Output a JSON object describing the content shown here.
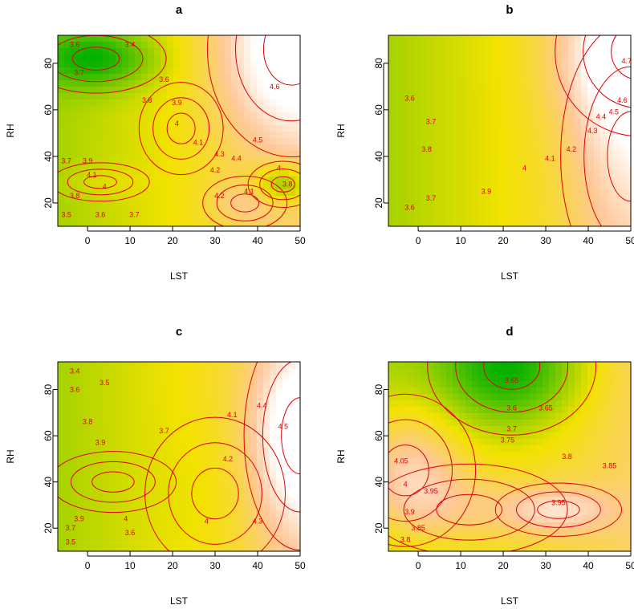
{
  "colors": {
    "contour": "#e00000",
    "low": "#00b000",
    "mid": "#f2e200",
    "high": "#ffc89a",
    "peak": "#ffffff"
  },
  "chart_data": [
    {
      "type": "heatmap",
      "title": "a",
      "xlabel": "LST",
      "ylabel": "RH",
      "xlim": [
        -7,
        50
      ],
      "ylim": [
        10,
        92
      ],
      "xticks": [
        "0",
        "10",
        "20",
        "30",
        "40",
        "50"
      ],
      "yticks": [
        "20",
        "40",
        "60",
        "80"
      ],
      "zrange": [
        3.4,
        4.7
      ],
      "peaks": [
        {
          "x": 48,
          "y": 86,
          "z": 4.7,
          "sx": 12,
          "sy": 28
        },
        {
          "x": 37,
          "y": 20,
          "z": 4.25,
          "sx": 6,
          "sy": 7
        },
        {
          "x": 3,
          "y": 29,
          "z": 4.12,
          "sx": 7,
          "sy": 5
        },
        {
          "x": 22,
          "y": 52,
          "z": 4.05,
          "sx": 6,
          "sy": 12
        },
        {
          "x": 46,
          "y": 28,
          "z": 3.55,
          "sx": 5,
          "sy": 6
        },
        {
          "x": 2,
          "y": 82,
          "z": 3.55,
          "sx": 10,
          "sy": 9
        }
      ],
      "contour_labels": [
        {
          "x": -3,
          "y": 87,
          "text": "3.6"
        },
        {
          "x": 10,
          "y": 87,
          "text": "3.4"
        },
        {
          "x": -2,
          "y": 75,
          "text": "3.7"
        },
        {
          "x": 18,
          "y": 72,
          "text": "3.6"
        },
        {
          "x": 14,
          "y": 63,
          "text": "3.8"
        },
        {
          "x": 21,
          "y": 62,
          "text": "3.9"
        },
        {
          "x": 21,
          "y": 53,
          "text": "4"
        },
        {
          "x": 26,
          "y": 45,
          "text": "4.1"
        },
        {
          "x": 44,
          "y": 69,
          "text": "4.6"
        },
        {
          "x": 40,
          "y": 46,
          "text": "4.5"
        },
        {
          "x": 35,
          "y": 38,
          "text": "4.4"
        },
        {
          "x": 31,
          "y": 40,
          "text": "4.3"
        },
        {
          "x": 30,
          "y": 33,
          "text": "4.2"
        },
        {
          "x": 31,
          "y": 22,
          "text": "4.2"
        },
        {
          "x": 38,
          "y": 24,
          "text": "4.1"
        },
        {
          "x": 45,
          "y": 34,
          "text": "4"
        },
        {
          "x": 47,
          "y": 27,
          "text": "3.8"
        },
        {
          "x": -5,
          "y": 37,
          "text": "3.7"
        },
        {
          "x": 0,
          "y": 37,
          "text": "3.9"
        },
        {
          "x": 1,
          "y": 31,
          "text": "4.1"
        },
        {
          "x": 4,
          "y": 26,
          "text": "4"
        },
        {
          "x": -3,
          "y": 22,
          "text": "3.8"
        },
        {
          "x": -5,
          "y": 14,
          "text": "3.5"
        },
        {
          "x": 3,
          "y": 14,
          "text": "3.6"
        },
        {
          "x": 11,
          "y": 14,
          "text": "3.7"
        }
      ]
    },
    {
      "type": "heatmap",
      "title": "b",
      "xlabel": "LST",
      "ylabel": "RH",
      "xlim": [
        -7,
        50
      ],
      "ylim": [
        10,
        92
      ],
      "xticks": [
        "0",
        "10",
        "20",
        "30",
        "40",
        "50"
      ],
      "yticks": [
        "20",
        "40",
        "60",
        "80"
      ],
      "zrange": [
        3.5,
        4.8
      ],
      "peaks": [
        {
          "x": 52,
          "y": 85,
          "z": 4.85,
          "sx": 12,
          "sy": 22
        },
        {
          "x": 50,
          "y": 40,
          "z": 4.45,
          "sx": 10,
          "sy": 35
        }
      ],
      "contour_labels": [
        {
          "x": -2,
          "y": 64,
          "text": "3.6"
        },
        {
          "x": 3,
          "y": 54,
          "text": "3.7"
        },
        {
          "x": 2,
          "y": 42,
          "text": "3.8"
        },
        {
          "x": 16,
          "y": 24,
          "text": "3.9"
        },
        {
          "x": 25,
          "y": 34,
          "text": "4"
        },
        {
          "x": 31,
          "y": 38,
          "text": "4.1"
        },
        {
          "x": 36,
          "y": 42,
          "text": "4.2"
        },
        {
          "x": 41,
          "y": 50,
          "text": "4.3"
        },
        {
          "x": 43,
          "y": 56,
          "text": "4.4"
        },
        {
          "x": 46,
          "y": 58,
          "text": "4.5"
        },
        {
          "x": 48,
          "y": 63,
          "text": "4.6"
        },
        {
          "x": 49,
          "y": 80,
          "text": "4.7"
        },
        {
          "x": -2,
          "y": 17,
          "text": "3.6"
        },
        {
          "x": 3,
          "y": 21,
          "text": "3.7"
        }
      ]
    },
    {
      "type": "heatmap",
      "title": "c",
      "xlabel": "LST",
      "ylabel": "RH",
      "xlim": [
        -7,
        50
      ],
      "ylim": [
        10,
        92
      ],
      "xticks": [
        "0",
        "10",
        "20",
        "30",
        "40",
        "50"
      ],
      "yticks": [
        "20",
        "40",
        "60",
        "80"
      ],
      "zrange": [
        3.4,
        4.6
      ],
      "peaks": [
        {
          "x": 50,
          "y": 60,
          "z": 4.6,
          "sx": 8,
          "sy": 30
        },
        {
          "x": 6,
          "y": 40,
          "z": 4.0,
          "sx": 9,
          "sy": 8
        },
        {
          "x": 30,
          "y": 35,
          "z": 3.95,
          "sx": 10,
          "sy": 20
        }
      ],
      "contour_labels": [
        {
          "x": -3,
          "y": 87,
          "text": "3.4"
        },
        {
          "x": 4,
          "y": 82,
          "text": "3.5"
        },
        {
          "x": -3,
          "y": 79,
          "text": "3.6"
        },
        {
          "x": 0,
          "y": 65,
          "text": "3.8"
        },
        {
          "x": 18,
          "y": 61,
          "text": "3.7"
        },
        {
          "x": 3,
          "y": 56,
          "text": "3.9"
        },
        {
          "x": 9,
          "y": 23,
          "text": "4"
        },
        {
          "x": 28,
          "y": 22,
          "text": "4"
        },
        {
          "x": 34,
          "y": 68,
          "text": "4.1"
        },
        {
          "x": 33,
          "y": 49,
          "text": "4.2"
        },
        {
          "x": 40,
          "y": 22,
          "text": "4.3"
        },
        {
          "x": 41,
          "y": 72,
          "text": "4.4"
        },
        {
          "x": 46,
          "y": 63,
          "text": "4.5"
        },
        {
          "x": -2,
          "y": 23,
          "text": "3.9"
        },
        {
          "x": -4,
          "y": 19,
          "text": "3.7"
        },
        {
          "x": 10,
          "y": 17,
          "text": "3.6"
        },
        {
          "x": -4,
          "y": 13,
          "text": "3.5"
        }
      ]
    },
    {
      "type": "heatmap",
      "title": "d",
      "xlabel": "LST",
      "ylabel": "RH",
      "xlim": [
        -7,
        50
      ],
      "ylim": [
        10,
        92
      ],
      "xticks": [
        "0",
        "10",
        "20",
        "30",
        "40",
        "50"
      ],
      "yticks": [
        "20",
        "40",
        "60",
        "80"
      ],
      "zrange": [
        3.55,
        4.1
      ],
      "peaks": [
        {
          "x": 22,
          "y": 90,
          "z": 3.55,
          "sx": 12,
          "sy": 18
        },
        {
          "x": -3,
          "y": 45,
          "z": 4.06,
          "sx": 10,
          "sy": 20
        },
        {
          "x": 33,
          "y": 28,
          "z": 3.97,
          "sx": 9,
          "sy": 7
        },
        {
          "x": 12,
          "y": 28,
          "z": 3.92,
          "sx": 14,
          "sy": 12
        }
      ],
      "contour_labels": [
        {
          "x": -4,
          "y": 48,
          "text": "4.05"
        },
        {
          "x": -3,
          "y": 38,
          "text": "4"
        },
        {
          "x": 3,
          "y": 35,
          "text": "3.95"
        },
        {
          "x": 33,
          "y": 30,
          "text": "3.95"
        },
        {
          "x": -2,
          "y": 26,
          "text": "3.9"
        },
        {
          "x": 0,
          "y": 19,
          "text": "3.85"
        },
        {
          "x": -3,
          "y": 14,
          "text": "3.8"
        },
        {
          "x": 45,
          "y": 46,
          "text": "3.85"
        },
        {
          "x": 35,
          "y": 50,
          "text": "3.8"
        },
        {
          "x": 21,
          "y": 57,
          "text": "3.75"
        },
        {
          "x": 22,
          "y": 62,
          "text": "3.7"
        },
        {
          "x": 22,
          "y": 71,
          "text": "3.6"
        },
        {
          "x": 30,
          "y": 71,
          "text": "3.65"
        },
        {
          "x": 22,
          "y": 83,
          "text": "3.65"
        }
      ]
    }
  ]
}
